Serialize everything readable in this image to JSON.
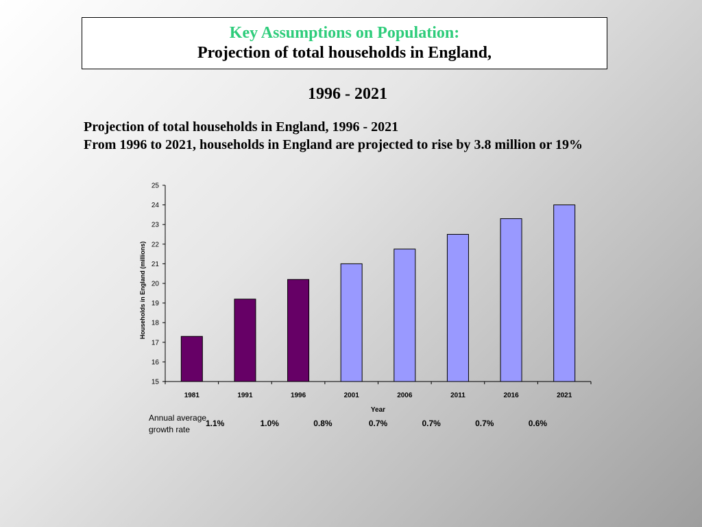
{
  "header": {
    "title_line1": "Key Assumptions on Population:",
    "title_line2": "Projection of total households in England,",
    "title_years": "1996 - 2021"
  },
  "chart_heading": {
    "line1": "Projection of total households in England, 1996 - 2021",
    "line2": "From 1996 to 2021, households in England are projected to rise by 3.8 million or 19%"
  },
  "growth": {
    "label": "Annual average growth rate",
    "values": [
      "1.1%",
      "1.0%",
      "0.8%",
      "0.7%",
      "0.7%",
      "0.7%",
      "0.6%"
    ]
  },
  "colors": {
    "historical": "#660066",
    "projected": "#9999ff",
    "title_green": "#2dcc7a"
  },
  "chart_data": {
    "type": "bar",
    "categories": [
      "1981",
      "1991",
      "1996",
      "2001",
      "2006",
      "2011",
      "2016",
      "2021"
    ],
    "values": [
      17.3,
      19.2,
      20.2,
      21.0,
      21.75,
      22.5,
      23.3,
      24.0
    ],
    "projected_from_index": 3,
    "xlabel": "Year",
    "ylabel": "Households in England (millions)",
    "ylim": [
      15,
      25
    ],
    "yticks": [
      15,
      16,
      17,
      18,
      19,
      20,
      21,
      22,
      23,
      24,
      25
    ],
    "grid": false,
    "legend": "none"
  }
}
